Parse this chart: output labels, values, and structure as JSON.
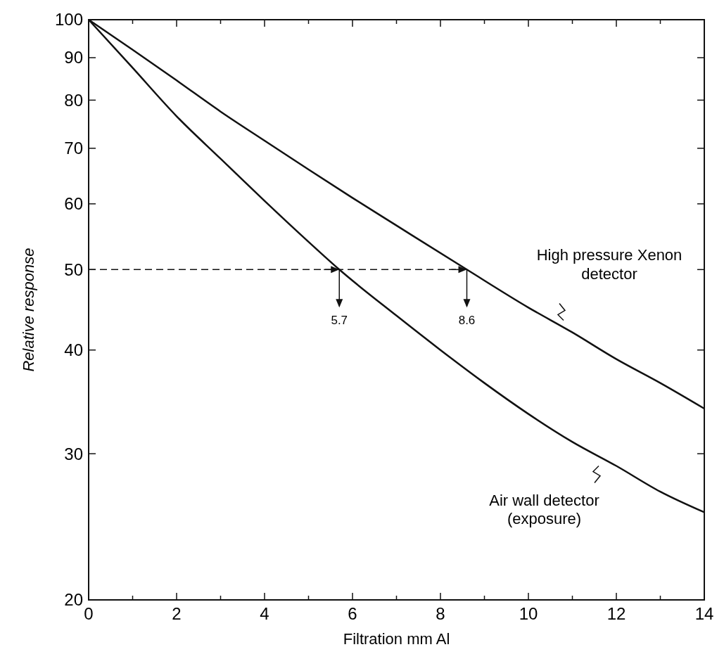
{
  "chart_data": {
    "type": "line",
    "xlabel": "Filtration mm Al",
    "ylabel": "Relative response",
    "log": "y",
    "grid": false,
    "marker": "none",
    "line_style": "solid",
    "xlim": [
      0,
      14
    ],
    "xticks": [
      0,
      {
        "value": 1,
        "label": null
      },
      2,
      {
        "value": 3,
        "label": null
      },
      4,
      {
        "value": 5,
        "label": null
      },
      6,
      {
        "value": 7,
        "label": null
      },
      8,
      {
        "value": 9,
        "label": null
      },
      10,
      {
        "value": 11,
        "label": null
      },
      12,
      {
        "value": 13,
        "label": null
      },
      14
    ],
    "ylim": [
      20,
      100
    ],
    "yticks": [
      20,
      30,
      40,
      50,
      60,
      70,
      80,
      90,
      100
    ],
    "series": [
      {
        "name": "High pressure Xenon detector",
        "color": "#111111",
        "x": [
          0,
          1,
          2,
          3,
          4,
          5,
          6,
          7,
          8.6,
          10,
          11,
          12,
          13,
          14
        ],
        "values": [
          100,
          92,
          84.5,
          77.5,
          71.5,
          66,
          61,
          56.5,
          50,
          45,
          42,
          39,
          36.5,
          34
        ]
      },
      {
        "name": "Air wall detector (exposure)",
        "color": "#111111",
        "x": [
          0,
          1,
          2,
          3,
          4,
          5,
          5.7,
          7,
          8,
          9,
          10,
          11,
          12,
          13,
          14
        ],
        "values": [
          100,
          87.5,
          76.5,
          68,
          60.5,
          54,
          50,
          44,
          40,
          36.5,
          33.5,
          31,
          29,
          27,
          25.5
        ]
      }
    ],
    "ref_lines": [
      {
        "axis": "y",
        "value": 50,
        "line_style": "dashed",
        "color": "#111111"
      }
    ],
    "annotations": [
      {
        "text": "5.7",
        "x": 5.7,
        "y": 50
      },
      {
        "text": "8.6",
        "x": 8.6,
        "y": 50
      }
    ]
  }
}
